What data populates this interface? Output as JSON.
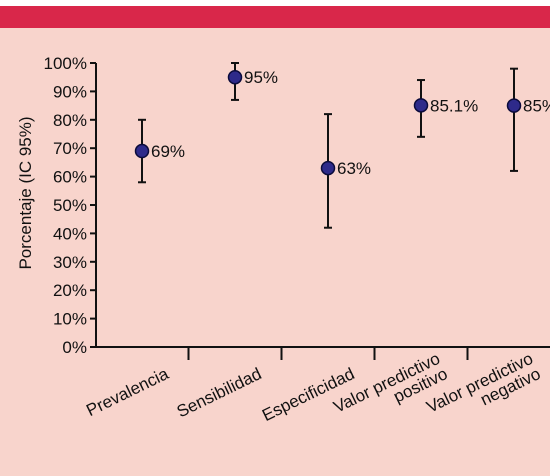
{
  "colors": {
    "background": "#f8d4cc",
    "top_bar": "#d9274a",
    "marker_fill": "#2e2a8a",
    "marker_stroke": "#0b0b3b",
    "line": "#111111"
  },
  "chart_data": {
    "type": "scatter",
    "title": "",
    "xlabel": "",
    "ylabel": "Porcentaje (IC 95%)",
    "ylim": [
      0,
      100
    ],
    "yticks": [
      0,
      10,
      20,
      30,
      40,
      50,
      60,
      70,
      80,
      90,
      100
    ],
    "ytick_labels": [
      "0%",
      "10%",
      "20%",
      "30%",
      "40%",
      "50%",
      "60%",
      "70%",
      "80%",
      "90%",
      "100%"
    ],
    "grid": false,
    "categories": [
      [
        "Prevalencia"
      ],
      [
        "Sensibilidad"
      ],
      [
        "Especificidad"
      ],
      [
        "Valor predictivo",
        "positivo"
      ],
      [
        "Valor predictivo",
        "negativo"
      ]
    ],
    "values": [
      69,
      95,
      63,
      85.1,
      85
    ],
    "ci_low": [
      58,
      87,
      42,
      74,
      62
    ],
    "ci_high": [
      80,
      100,
      82,
      94,
      98
    ],
    "data_labels": [
      "69%",
      "95%",
      "63%",
      "85.1%",
      "85%"
    ]
  }
}
